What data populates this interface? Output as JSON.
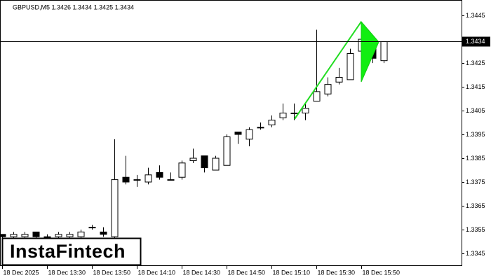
{
  "chart_data": {
    "type": "candlestick",
    "title": "GBPUSD,M5  1.3426 1.3434 1.3425 1.3434",
    "logo": "InstaFintech",
    "categories": [
      "18 Dec 2025",
      null,
      null,
      null,
      "18 Dec 13:30",
      null,
      null,
      null,
      "18 Dec 13:50",
      null,
      null,
      null,
      "18 Dec 14:10",
      null,
      null,
      null,
      "18 Dec 14:30",
      null,
      null,
      null,
      "18 Dec 14:50",
      null,
      null,
      null,
      "18 Dec 15:10",
      null,
      null,
      null,
      "18 Dec 15:30",
      null,
      null,
      null,
      "18 Dec 15:50",
      null,
      null
    ],
    "open": [
      1.3353,
      1.3352,
      1.3352,
      1.3354,
      1.3352,
      1.3352,
      1.3352,
      1.3352,
      1.3356,
      1.3354,
      1.3352,
      1.3377,
      1.3376,
      1.3375,
      1.3379,
      1.3376,
      1.3377,
      1.3384,
      1.3386,
      1.338,
      1.3382,
      1.3396,
      1.3393,
      1.3398,
      1.3399,
      1.3402,
      1.3404,
      1.3404,
      1.3409,
      1.3412,
      1.3417,
      1.3418,
      1.343,
      1.3434,
      1.3426
    ],
    "high": [
      1.3353,
      1.3354,
      1.3354,
      1.3354,
      1.3353,
      1.3354,
      1.3354,
      1.3355,
      1.3357,
      1.3356,
      1.3393,
      1.3386,
      1.3378,
      1.3381,
      1.3382,
      1.3379,
      1.3384,
      1.3389,
      1.3386,
      1.3386,
      1.3395,
      1.3396,
      1.3398,
      1.34,
      1.3403,
      1.3408,
      1.3408,
      1.3408,
      1.3439,
      1.3419,
      1.3423,
      1.3431,
      1.3438,
      1.3435,
      1.3434
    ],
    "low": [
      1.3351,
      1.3351,
      1.3351,
      1.3351,
      1.3351,
      1.3351,
      1.3351,
      1.3351,
      1.3355,
      1.3352,
      1.3351,
      1.3374,
      1.3373,
      1.3374,
      1.3376,
      1.3376,
      1.3376,
      1.3383,
      1.3379,
      1.338,
      1.3382,
      1.3391,
      1.339,
      1.3397,
      1.3398,
      1.3401,
      1.3401,
      1.3401,
      1.3409,
      1.3411,
      1.3416,
      1.3418,
      1.3429,
      1.3425,
      1.3425
    ],
    "close": [
      1.3352,
      1.3353,
      1.3353,
      1.3352,
      1.3352,
      1.3353,
      1.3353,
      1.3354,
      1.3356,
      1.3353,
      1.3376,
      1.3375,
      1.3376,
      1.3378,
      1.3377,
      1.3376,
      1.3383,
      1.3385,
      1.3381,
      1.3385,
      1.3394,
      1.3395,
      1.3397,
      1.3398,
      1.3401,
      1.3404,
      1.3404,
      1.3406,
      1.3413,
      1.3416,
      1.3419,
      1.3429,
      1.3435,
      1.3427,
      1.3434
    ],
    "up_color": "#ffffff",
    "down_color": "#000000",
    "current_price": 1.3434,
    "ylim": [
      1.33397,
      1.34515
    ],
    "yticks": [
      1.3345,
      1.3355,
      1.3365,
      1.3375,
      1.3385,
      1.3395,
      1.3405,
      1.3415,
      1.3425,
      1.3445
    ]
  }
}
